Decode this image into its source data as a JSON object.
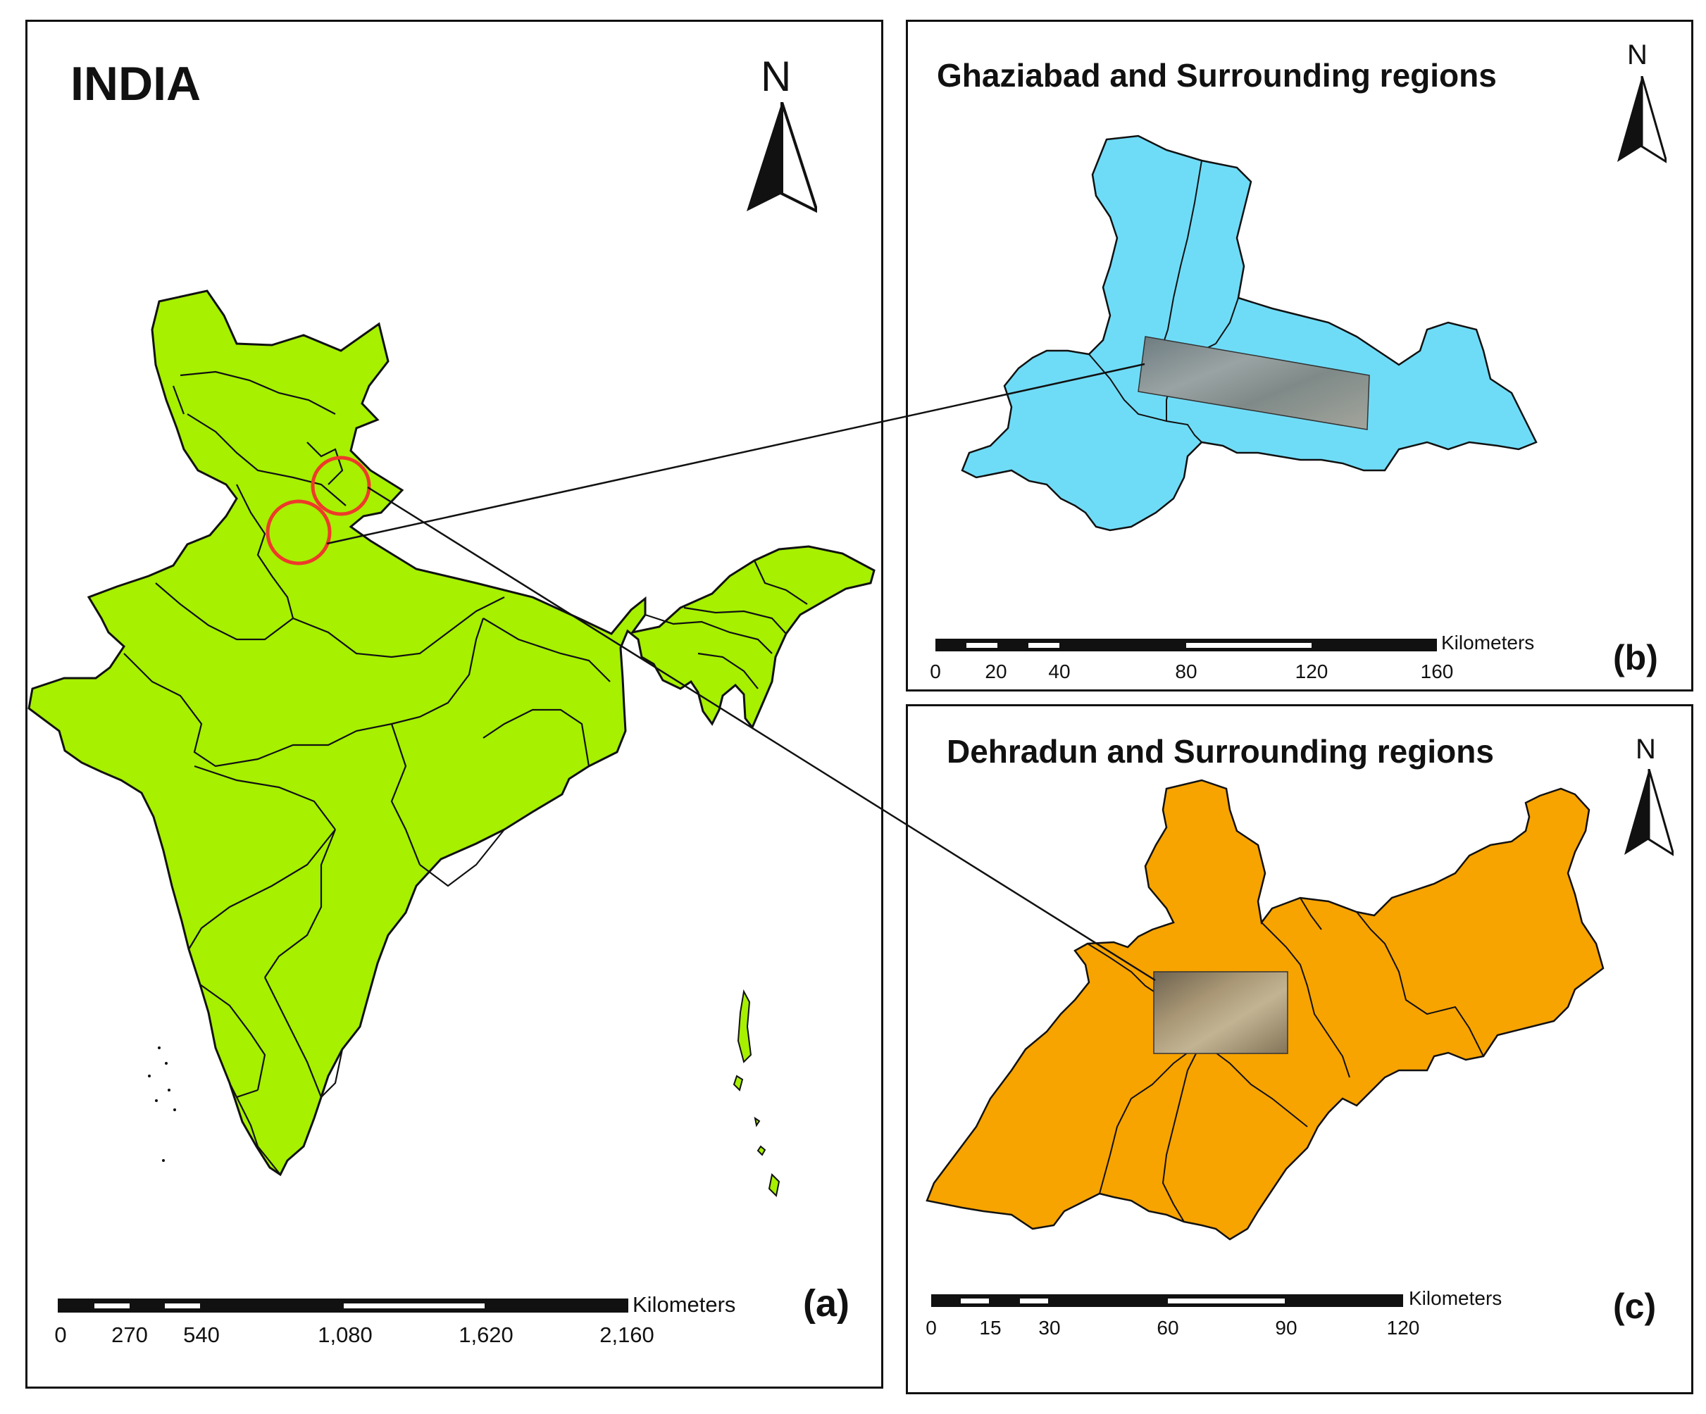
{
  "panel_a": {
    "title": "INDIA",
    "letter": "(a)",
    "north": "N",
    "scale": {
      "unit": "Kilometers",
      "ticks": [
        "0",
        "270",
        "540",
        "1,080",
        "1,620",
        "2,160"
      ]
    },
    "fill_color": "#a6f000",
    "highlight_color": "#ee3a2a"
  },
  "panel_b": {
    "title": "Ghaziabad and Surrounding regions",
    "letter": "(b)",
    "north": "N",
    "scale": {
      "unit": "Kilometers",
      "ticks": [
        "0",
        "20",
        "40",
        "80",
        "120",
        "160"
      ]
    },
    "fill_color": "#6fdcf7"
  },
  "panel_c": {
    "title": "Dehradun and Surrounding regions",
    "letter": "(c)",
    "north": "N",
    "scale": {
      "unit": "Kilometers",
      "ticks": [
        "0",
        "15",
        "30",
        "60",
        "90",
        "120"
      ]
    },
    "fill_color": "#f7a300"
  }
}
